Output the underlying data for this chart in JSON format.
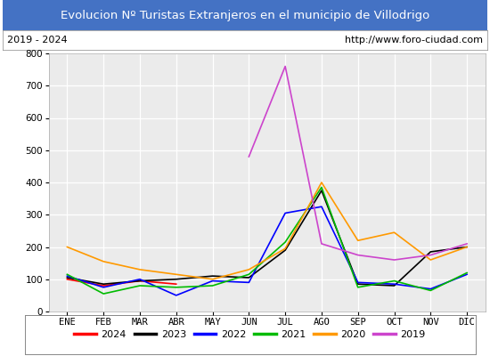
{
  "title": "Evolucion Nº Turistas Extranjeros en el municipio de Villodrigo",
  "subtitle_left": "2019 - 2024",
  "subtitle_right": "http://www.foro-ciudad.com",
  "title_bg_color": "#4472c4",
  "title_text_color": "#ffffff",
  "subtitle_bg_color": "#ffffff",
  "plot_bg_color": "#ebebeb",
  "months": [
    "ENE",
    "FEB",
    "MAR",
    "ABR",
    "MAY",
    "JUN",
    "JUL",
    "AGO",
    "SEP",
    "OCT",
    "NOV",
    "DIC"
  ],
  "ylim": [
    0,
    800
  ],
  "yticks": [
    0,
    100,
    200,
    300,
    400,
    500,
    600,
    700,
    800
  ],
  "series": {
    "2024": {
      "color": "#ff0000",
      "data": [
        100,
        80,
        95,
        85,
        null,
        null,
        null,
        null,
        null,
        null,
        null,
        null
      ]
    },
    "2023": {
      "color": "#000000",
      "data": [
        105,
        85,
        95,
        100,
        110,
        105,
        190,
        375,
        85,
        80,
        185,
        200
      ]
    },
    "2022": {
      "color": "#0000ff",
      "data": [
        110,
        75,
        100,
        50,
        95,
        90,
        305,
        325,
        90,
        85,
        70,
        115
      ]
    },
    "2021": {
      "color": "#00bb00",
      "data": [
        115,
        55,
        80,
        75,
        80,
        115,
        215,
        385,
        75,
        95,
        65,
        120
      ]
    },
    "2020": {
      "color": "#ff9900",
      "data": [
        200,
        155,
        130,
        115,
        100,
        130,
        195,
        400,
        220,
        245,
        160,
        200
      ]
    },
    "2019": {
      "color": "#cc44cc",
      "data": [
        null,
        null,
        null,
        null,
        null,
        480,
        760,
        210,
        175,
        160,
        175,
        210
      ]
    }
  }
}
